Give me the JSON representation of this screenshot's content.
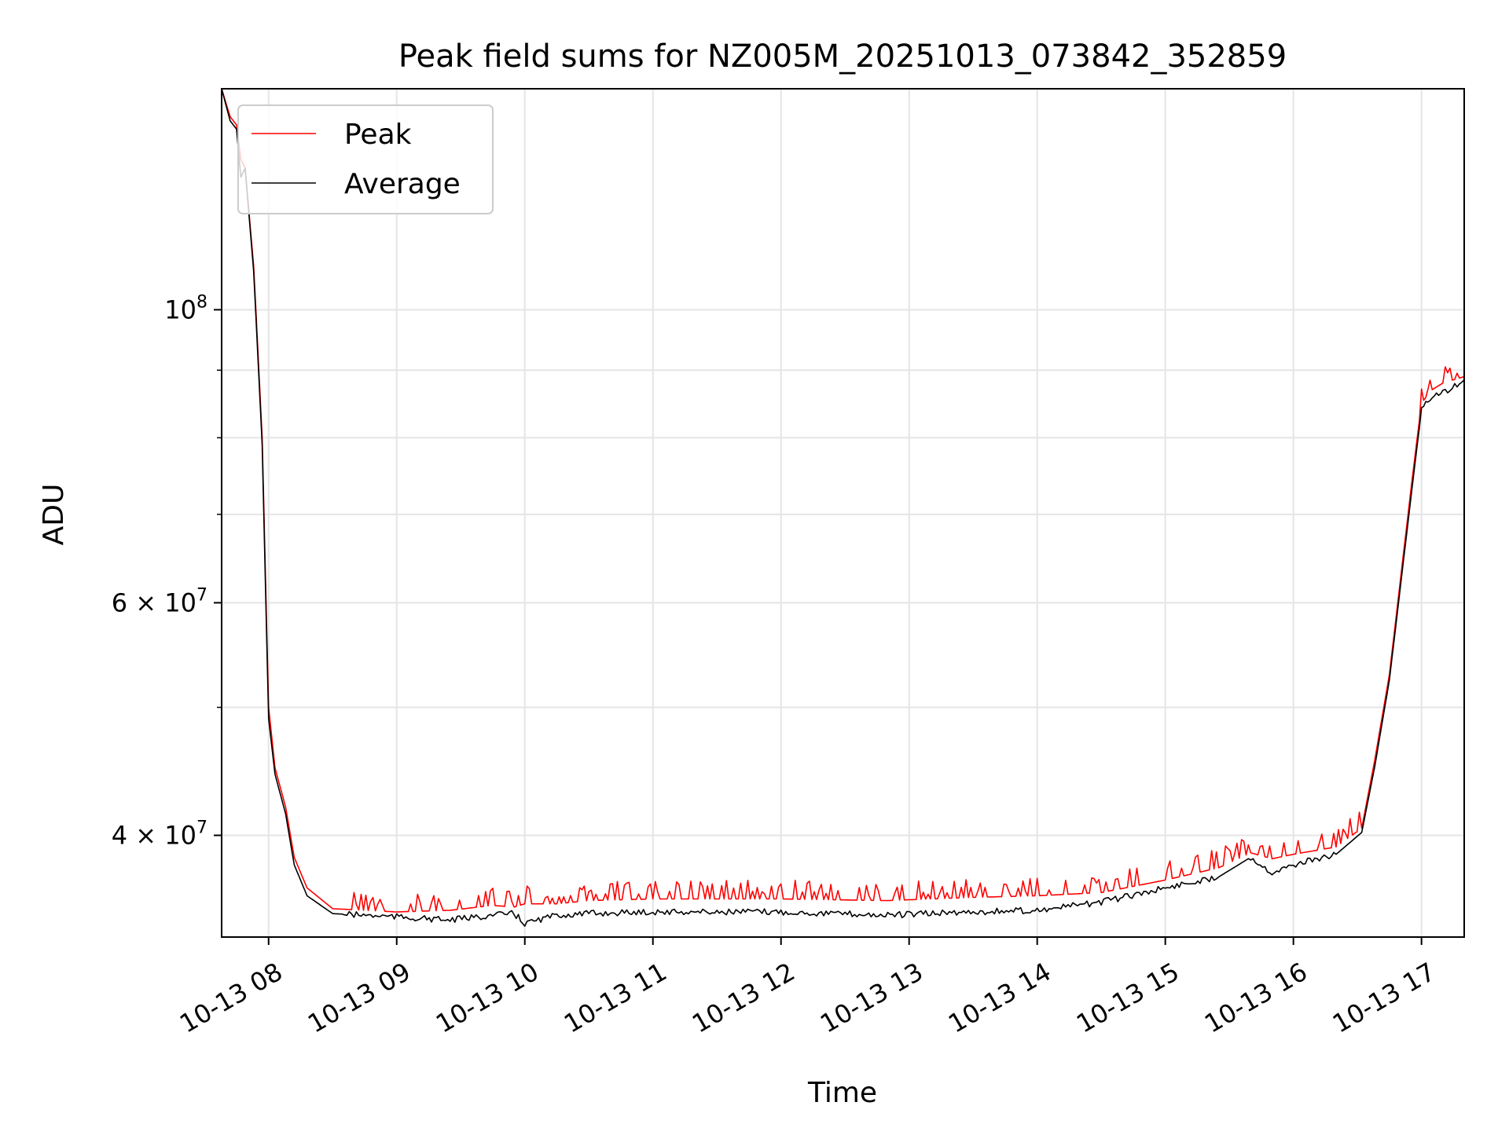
{
  "chart_data": {
    "type": "line",
    "title": "Peak field sums for NZ005M_20251013_073842_352859",
    "xlabel": "Time",
    "ylabel": "ADU",
    "y_scale": "log",
    "xlim": [
      "2025-10-13 07:38",
      "2025-10-13 17:20"
    ],
    "ylim": [
      33500000,
      147000000
    ],
    "x_ticks": [
      {
        "value": "2025-10-13 08:00",
        "label": "10-13 08"
      },
      {
        "value": "2025-10-13 09:00",
        "label": "10-13 09"
      },
      {
        "value": "2025-10-13 10:00",
        "label": "10-13 10"
      },
      {
        "value": "2025-10-13 11:00",
        "label": "10-13 11"
      },
      {
        "value": "2025-10-13 12:00",
        "label": "10-13 12"
      },
      {
        "value": "2025-10-13 13:00",
        "label": "10-13 13"
      },
      {
        "value": "2025-10-13 14:00",
        "label": "10-13 14"
      },
      {
        "value": "2025-10-13 15:00",
        "label": "10-13 15"
      },
      {
        "value": "2025-10-13 16:00",
        "label": "10-13 16"
      },
      {
        "value": "2025-10-13 17:00",
        "label": "10-13 17"
      }
    ],
    "y_major_ticks": [
      {
        "value": 100000000,
        "base": "10",
        "exp": "8"
      },
      {
        "value": 60000000,
        "base": "6 × 10",
        "exp": "7"
      },
      {
        "value": 40000000,
        "base": "4 × 10",
        "exp": "7"
      }
    ],
    "y_minor_ticks": [
      90000000,
      80000000,
      70000000,
      50000000
    ],
    "grid": true,
    "legend_position": "top-left",
    "series": [
      {
        "name": "Peak",
        "color": "#ff0000",
        "x": [
          "2025-10-13 07:38",
          "2025-10-13 07:42",
          "2025-10-13 07:45",
          "2025-10-13 07:47",
          "2025-10-13 07:49",
          "2025-10-13 07:53",
          "2025-10-13 07:57",
          "2025-10-13 08:00",
          "2025-10-13 08:03",
          "2025-10-13 08:08",
          "2025-10-13 08:12",
          "2025-10-13 08:18",
          "2025-10-13 08:30",
          "2025-10-13 09:00",
          "2025-10-13 09:25",
          "2025-10-13 09:45",
          "2025-10-13 09:55",
          "2025-10-13 10:00",
          "2025-10-13 10:15",
          "2025-10-13 10:30",
          "2025-10-13 11:00",
          "2025-10-13 12:00",
          "2025-10-13 12:50",
          "2025-10-13 13:30",
          "2025-10-13 14:00",
          "2025-10-13 14:30",
          "2025-10-13 15:00",
          "2025-10-13 15:25",
          "2025-10-13 15:40",
          "2025-10-13 15:50",
          "2025-10-13 16:00",
          "2025-10-13 16:20",
          "2025-10-13 16:32",
          "2025-10-13 16:38",
          "2025-10-13 16:45",
          "2025-10-13 16:55",
          "2025-10-13 17:00",
          "2025-10-13 17:05",
          "2025-10-13 17:10",
          "2025-10-13 17:20"
        ],
        "y": [
          147000000,
          140000000,
          138000000,
          130000000,
          128000000,
          108000000,
          80000000,
          50000000,
          45000000,
          42000000,
          38500000,
          36500000,
          35200000,
          35000000,
          35100000,
          35400000,
          35300000,
          35500000,
          35500000,
          35700000,
          35800000,
          35800000,
          35700000,
          35900000,
          36000000,
          36200000,
          37000000,
          37800000,
          38800000,
          38400000,
          38700000,
          39200000,
          40500000,
          45500000,
          53000000,
          73000000,
          85000000,
          87000000,
          88000000,
          89000000
        ]
      },
      {
        "name": "Average",
        "color": "#000000",
        "x": [
          "2025-10-13 07:38",
          "2025-10-13 07:42",
          "2025-10-13 07:45",
          "2025-10-13 07:47",
          "2025-10-13 07:49",
          "2025-10-13 07:53",
          "2025-10-13 07:57",
          "2025-10-13 08:00",
          "2025-10-13 08:03",
          "2025-10-13 08:08",
          "2025-10-13 08:12",
          "2025-10-13 08:18",
          "2025-10-13 08:30",
          "2025-10-13 09:00",
          "2025-10-13 09:25",
          "2025-10-13 09:45",
          "2025-10-13 09:55",
          "2025-10-13 10:00",
          "2025-10-13 10:15",
          "2025-10-13 10:30",
          "2025-10-13 11:00",
          "2025-10-13 12:00",
          "2025-10-13 12:50",
          "2025-10-13 13:30",
          "2025-10-13 14:00",
          "2025-10-13 14:30",
          "2025-10-13 15:00",
          "2025-10-13 15:25",
          "2025-10-13 15:40",
          "2025-10-13 15:50",
          "2025-10-13 16:00",
          "2025-10-13 16:20",
          "2025-10-13 16:32",
          "2025-10-13 16:38",
          "2025-10-13 16:45",
          "2025-10-13 16:55",
          "2025-10-13 17:00",
          "2025-10-13 17:05",
          "2025-10-13 17:10",
          "2025-10-13 17:20"
        ],
        "y": [
          147000000,
          139000000,
          137000000,
          126000000,
          128000000,
          107000000,
          79000000,
          49000000,
          44500000,
          41500000,
          38000000,
          36000000,
          34900000,
          34700000,
          34500000,
          34800000,
          34900000,
          34300000,
          34800000,
          34900000,
          35000000,
          35000000,
          34800000,
          35000000,
          35100000,
          35600000,
          36500000,
          37200000,
          38500000,
          37500000,
          38000000,
          38700000,
          40200000,
          45000000,
          52500000,
          72000000,
          84000000,
          86000000,
          86500000,
          88500000
        ]
      }
    ]
  }
}
